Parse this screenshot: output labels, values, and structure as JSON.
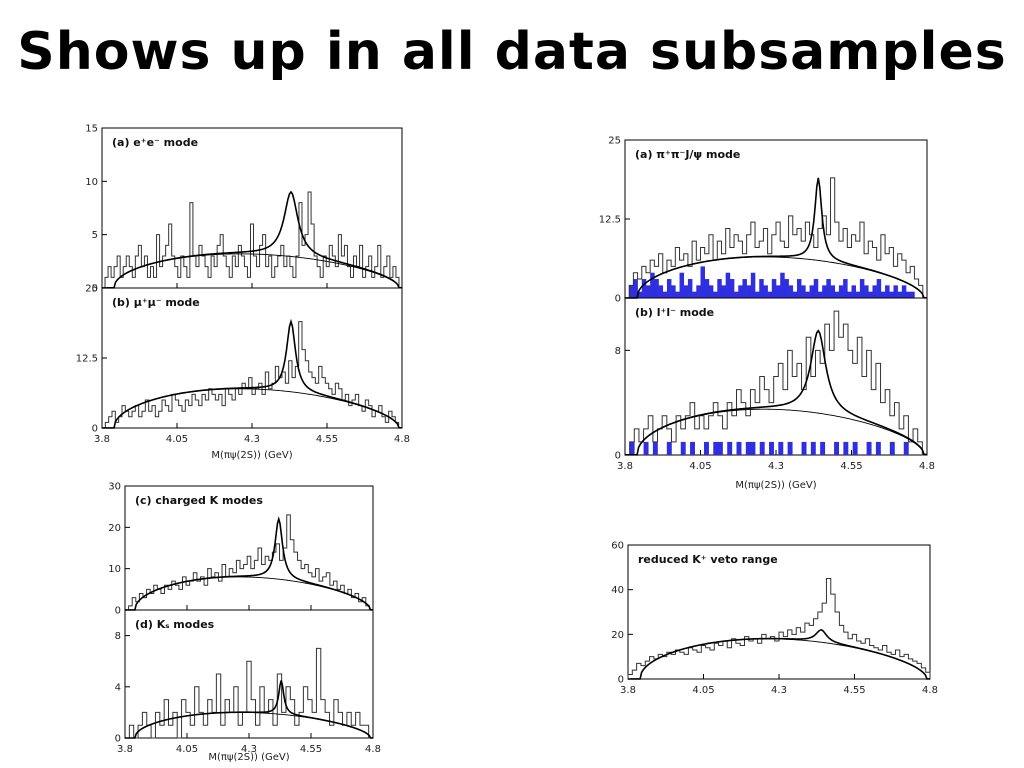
{
  "slide": {
    "title": "Shows up in all data subsamples"
  },
  "chart_data": [
    {
      "type": "bar",
      "id": "left-top",
      "panels": [
        {
          "label": "(a) e⁺e⁻ mode",
          "ylim": [
            0,
            15
          ],
          "yticks": [
            "0",
            "5",
            "10",
            "15"
          ],
          "ytick_values": [
            0,
            5,
            10,
            15
          ],
          "signal": {
            "peak": 9,
            "center": 4.43,
            "width": 0.028
          },
          "background_max": 3.2,
          "histogram": [
            0,
            1,
            2,
            1,
            2,
            3,
            1,
            2,
            3,
            2,
            1,
            3,
            4,
            2,
            3,
            1,
            2,
            1,
            5,
            2,
            3,
            4,
            6,
            3,
            2,
            1,
            3,
            2,
            1,
            8,
            3,
            2,
            4,
            3,
            2,
            1,
            3,
            2,
            4,
            5,
            3,
            2,
            1,
            3,
            2,
            4,
            3,
            2,
            1,
            6,
            3,
            2,
            4,
            5,
            2,
            3,
            1,
            2,
            3,
            4,
            2,
            3,
            2,
            1,
            3,
            8,
            4,
            5,
            9,
            6,
            3,
            2,
            1,
            3,
            2,
            4,
            3,
            2,
            5,
            3,
            4,
            2,
            1,
            3,
            2,
            4,
            1,
            2,
            3,
            1,
            2,
            4,
            1,
            2,
            3,
            1,
            2,
            1,
            0
          ]
        },
        {
          "label": "(b) μ⁺μ⁻ mode",
          "ylim": [
            0,
            25
          ],
          "yticks": [
            "0",
            "12.5",
            "25"
          ],
          "ytick_values": [
            0,
            12.5,
            25
          ],
          "signal": {
            "peak": 19,
            "center": 4.43,
            "width": 0.018
          },
          "background_max": 7,
          "histogram": [
            0,
            1,
            2,
            3,
            1,
            2,
            4,
            3,
            2,
            3,
            4,
            2,
            3,
            5,
            3,
            4,
            2,
            3,
            5,
            4,
            3,
            6,
            5,
            4,
            3,
            5,
            4,
            6,
            5,
            4,
            6,
            5,
            7,
            6,
            5,
            6,
            4,
            7,
            6,
            5,
            7,
            6,
            8,
            7,
            9,
            6,
            7,
            8,
            6,
            10,
            7,
            8,
            11,
            9,
            10,
            8,
            12,
            9,
            11,
            19,
            14,
            12,
            10,
            9,
            8,
            11,
            9,
            8,
            7,
            6,
            8,
            7,
            5,
            6,
            4,
            5,
            6,
            4,
            3,
            5,
            4,
            2,
            3,
            4,
            2,
            1,
            3,
            2,
            1,
            0
          ]
        }
      ],
      "xticks": [
        "3.8",
        "4.05",
        "4.3",
        "4.55",
        "4.8"
      ],
      "xtick_values": [
        3.8,
        4.05,
        4.3,
        4.55,
        4.8
      ],
      "xlim": [
        3.8,
        4.8
      ],
      "xlabel": "M(πψ(2S)) (GeV)"
    },
    {
      "type": "bar",
      "id": "right-top",
      "panels": [
        {
          "label": "(a) π⁺π⁻J/ψ mode",
          "ylim": [
            0,
            25
          ],
          "yticks": [
            "0",
            "12.5",
            "25"
          ],
          "ytick_values": [
            0,
            12.5,
            25
          ],
          "signal": {
            "peak": 19,
            "center": 4.44,
            "width": 0.014
          },
          "background_max": 6.5,
          "histogram": [
            0,
            2,
            4,
            3,
            5,
            4,
            6,
            5,
            7,
            4,
            6,
            5,
            8,
            6,
            7,
            5,
            9,
            6,
            8,
            7,
            10,
            6,
            9,
            7,
            11,
            8,
            10,
            9,
            7,
            10,
            12,
            8,
            9,
            11,
            7,
            10,
            12,
            9,
            8,
            13,
            10,
            11,
            9,
            12,
            10,
            8,
            11,
            13,
            10,
            19,
            12,
            9,
            11,
            8,
            10,
            9,
            12,
            7,
            9,
            8,
            6,
            10,
            7,
            8,
            5,
            7,
            6,
            4,
            5,
            3,
            2,
            0
          ],
          "shaded": [
            0,
            2,
            3,
            1,
            3,
            2,
            4,
            3,
            2,
            1,
            3,
            2,
            1,
            4,
            2,
            3,
            1,
            2,
            5,
            3,
            2,
            1,
            3,
            2,
            4,
            3,
            1,
            2,
            3,
            2,
            4,
            1,
            3,
            2,
            1,
            3,
            2,
            4,
            3,
            2,
            1,
            3,
            2,
            1,
            2,
            3,
            1,
            2,
            3,
            2,
            1,
            2,
            3,
            1,
            2,
            1,
            3,
            2,
            1,
            2,
            3,
            1,
            2,
            1,
            2,
            1,
            2,
            1,
            1,
            0,
            0,
            0
          ]
        },
        {
          "label": "(b) l⁺l⁻ mode",
          "ylim": [
            0,
            12
          ],
          "yticks": [
            "0",
            "8"
          ],
          "ytick_values": [
            0,
            8
          ],
          "signal": {
            "peak": 9.5,
            "center": 4.44,
            "width": 0.03
          },
          "background_max": 3.5,
          "histogram": [
            0,
            1,
            2,
            1,
            2,
            3,
            1,
            2,
            3,
            2,
            1,
            3,
            2,
            3,
            4,
            2,
            3,
            2,
            3,
            4,
            3,
            2,
            4,
            3,
            5,
            4,
            3,
            5,
            4,
            6,
            5,
            4,
            6,
            7,
            5,
            8,
            6,
            7,
            5,
            9,
            6,
            8,
            7,
            10,
            8,
            11,
            9,
            10,
            8,
            7,
            9,
            6,
            8,
            5,
            7,
            4,
            5,
            3,
            4,
            2,
            3,
            1,
            2,
            1,
            0
          ],
          "shaded": [
            0,
            1,
            0,
            0,
            1,
            0,
            1,
            0,
            0,
            1,
            0,
            0,
            1,
            0,
            1,
            0,
            0,
            1,
            0,
            1,
            1,
            0,
            1,
            0,
            1,
            0,
            1,
            1,
            0,
            1,
            0,
            1,
            0,
            1,
            0,
            1,
            0,
            0,
            1,
            0,
            1,
            0,
            1,
            0,
            0,
            1,
            0,
            1,
            0,
            1,
            0,
            0,
            1,
            0,
            1,
            0,
            0,
            1,
            0,
            0,
            1,
            0,
            0,
            0,
            0
          ]
        }
      ],
      "xticks": [
        "3.8",
        "4.05",
        "4.3",
        "4.55",
        "4.8"
      ],
      "xtick_values": [
        3.8,
        4.05,
        4.3,
        4.55,
        4.8
      ],
      "xlim": [
        3.8,
        4.8
      ],
      "xlabel": "M(πψ(2S)) (GeV)"
    },
    {
      "type": "bar",
      "id": "left-bottom",
      "panels": [
        {
          "label": "(c) charged K modes",
          "ylim": [
            0,
            30
          ],
          "yticks": [
            "0",
            "10",
            "20",
            "30"
          ],
          "ytick_values": [
            0,
            10,
            20,
            30
          ],
          "signal": {
            "peak": 22,
            "center": 4.42,
            "width": 0.018
          },
          "background_max": 8,
          "histogram": [
            0,
            1,
            3,
            2,
            4,
            3,
            5,
            4,
            6,
            5,
            4,
            6,
            5,
            7,
            6,
            5,
            8,
            6,
            7,
            9,
            7,
            8,
            6,
            10,
            8,
            9,
            7,
            11,
            8,
            10,
            9,
            12,
            10,
            11,
            13,
            10,
            12,
            15,
            11,
            13,
            12,
            14,
            16,
            12,
            15,
            23,
            17,
            14,
            12,
            10,
            11,
            9,
            8,
            10,
            7,
            8,
            9,
            6,
            7,
            5,
            6,
            4,
            5,
            3,
            4,
            2,
            3,
            1,
            0
          ]
        },
        {
          "label": "(d) Kₛ modes",
          "ylim": [
            0,
            10
          ],
          "yticks": [
            "0",
            "4",
            "8"
          ],
          "ytick_values": [
            0,
            4,
            8
          ],
          "signal": {
            "peak": 4.5,
            "center": 4.43,
            "width": 0.012
          },
          "background_max": 2,
          "histogram": [
            0,
            1,
            0,
            1,
            2,
            1,
            0,
            2,
            1,
            3,
            1,
            2,
            0,
            3,
            2,
            1,
            4,
            2,
            1,
            3,
            2,
            5,
            1,
            3,
            2,
            4,
            1,
            2,
            6,
            3,
            1,
            4,
            2,
            3,
            1,
            5,
            2,
            4,
            3,
            1,
            2,
            4,
            3,
            2,
            7,
            3,
            2,
            1,
            3,
            2,
            1,
            2,
            1,
            2,
            1,
            1,
            0
          ]
        }
      ],
      "xticks": [
        "3.8",
        "4.05",
        "4.3",
        "4.55",
        "4.8"
      ],
      "xtick_values": [
        3.8,
        4.05,
        4.3,
        4.55,
        4.8
      ],
      "xlim": [
        3.8,
        4.8
      ],
      "xlabel": "M(πψ(2S)) (GeV)"
    },
    {
      "type": "bar",
      "id": "right-bottom",
      "panels": [
        {
          "label": "reduced K⁺ veto range",
          "ylim": [
            0,
            60
          ],
          "yticks": [
            "0",
            "20",
            "40",
            "60"
          ],
          "ytick_values": [
            0,
            20,
            40,
            60
          ],
          "signal": {
            "peak": 22,
            "center": 4.44,
            "width": 0.022
          },
          "background_max": 18,
          "histogram": [
            2,
            4,
            7,
            6,
            8,
            10,
            9,
            11,
            10,
            12,
            11,
            13,
            12,
            11,
            14,
            13,
            12,
            15,
            14,
            13,
            16,
            15,
            17,
            14,
            18,
            16,
            15,
            19,
            17,
            18,
            16,
            20,
            18,
            19,
            17,
            21,
            19,
            22,
            20,
            23,
            21,
            25,
            24,
            27,
            30,
            34,
            45,
            38,
            30,
            24,
            21,
            18,
            20,
            17,
            16,
            18,
            15,
            14,
            13,
            15,
            12,
            11,
            13,
            10,
            11,
            9,
            8,
            7,
            5,
            3
          ]
        }
      ],
      "xticks": [
        "3.8",
        "4.05",
        "4.3",
        "4.55",
        "4.8"
      ],
      "xtick_values": [
        3.8,
        4.05,
        4.3,
        4.55,
        4.8
      ],
      "xlim": [
        3.8,
        4.8
      ],
      "xlabel": ""
    }
  ],
  "colors": {
    "shaded": "#2f2fe0",
    "curve": "#000000",
    "hist": "#333333"
  }
}
